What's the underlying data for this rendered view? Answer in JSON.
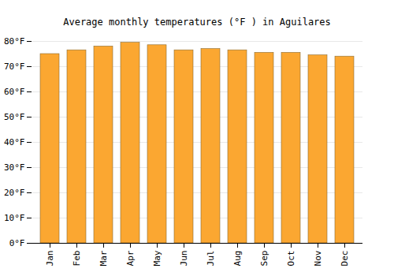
{
  "chart_data": {
    "type": "bar",
    "title": "Average monthly temperatures (°F ) in Aguilares",
    "categories": [
      "Jan",
      "Feb",
      "Mar",
      "Apr",
      "May",
      "Jun",
      "Jul",
      "Aug",
      "Sep",
      "Oct",
      "Nov",
      "Dec"
    ],
    "values": [
      75,
      76.5,
      78,
      79.5,
      78.5,
      76.5,
      77,
      76.5,
      75.5,
      75.5,
      74.5,
      74
    ],
    "color": "#fba731",
    "ylim": [
      0,
      80
    ],
    "yticks": [
      {
        "value": 0,
        "label": "0°F"
      },
      {
        "value": 10,
        "label": "10°F"
      },
      {
        "value": 20,
        "label": "20°F"
      },
      {
        "value": 30,
        "label": "30°F"
      },
      {
        "value": 40,
        "label": "40°F"
      },
      {
        "value": 50,
        "label": "50°F"
      },
      {
        "value": 60,
        "label": "60°F"
      },
      {
        "value": 70,
        "label": "70°F"
      },
      {
        "value": 80,
        "label": "80°F"
      }
    ],
    "grid": true
  }
}
